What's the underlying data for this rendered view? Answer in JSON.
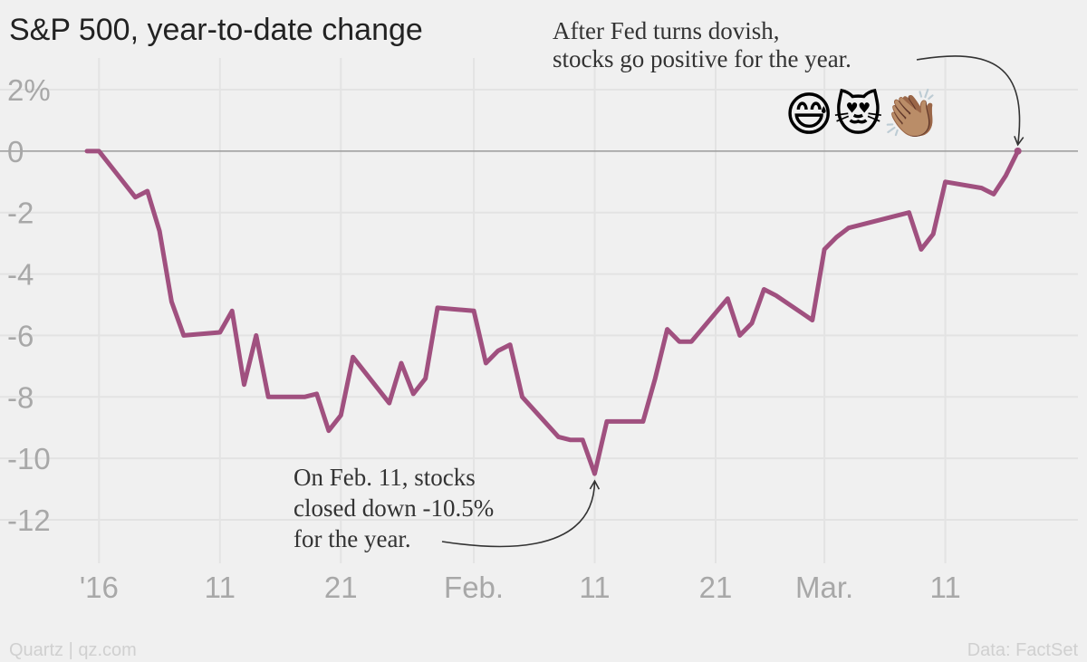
{
  "footer": {
    "source_left": "Quartz | qz.com",
    "source_right": "Data: FactSet"
  },
  "colors": {
    "line": "#a0507f",
    "background": "#f0f0f0",
    "grid": "#e3e3e3",
    "zero_line": "#9a9a9a",
    "tick_text": "#a8a8a8"
  },
  "chart_data": {
    "type": "line",
    "title": "S&P 500, year-to-date change",
    "xlabel": "",
    "ylabel": "",
    "ylim": [
      -13,
      2.5
    ],
    "grid": true,
    "y_ticks": [
      {
        "value": 2,
        "label": "2%"
      },
      {
        "value": 0,
        "label": "0"
      },
      {
        "value": -2,
        "label": "-2"
      },
      {
        "value": -4,
        "label": "-4"
      },
      {
        "value": -6,
        "label": "-6"
      },
      {
        "value": -8,
        "label": "-8"
      },
      {
        "value": -10,
        "label": "-10"
      },
      {
        "value": -12,
        "label": "-12"
      }
    ],
    "x_unit": "day of 2016",
    "xlim": [
      0,
      78
    ],
    "x_ticks": [
      {
        "value": 1,
        "label": "'16"
      },
      {
        "value": 11,
        "label": "11"
      },
      {
        "value": 21,
        "label": "21"
      },
      {
        "value": 32,
        "label": "Feb."
      },
      {
        "value": 42,
        "label": "11"
      },
      {
        "value": 52,
        "label": "21"
      },
      {
        "value": 61,
        "label": "Mar."
      },
      {
        "value": 71,
        "label": "11"
      }
    ],
    "series": [
      {
        "name": "S&P 500 YTD change (%)",
        "x": [
          0,
          1,
          4,
          5,
          6,
          7,
          8,
          11,
          12,
          13,
          14,
          15,
          18,
          19,
          20,
          21,
          22,
          25,
          26,
          27,
          28,
          29,
          32,
          33,
          34,
          35,
          36,
          39,
          40,
          41,
          42,
          43,
          46,
          47,
          48,
          49,
          50,
          53,
          54,
          55,
          56,
          57,
          60,
          61,
          62,
          63,
          67,
          68,
          69,
          70,
          71,
          74,
          75,
          76,
          77
        ],
        "y": [
          0.0,
          0.0,
          -1.5,
          -1.3,
          -2.6,
          -4.9,
          -6.0,
          -5.9,
          -5.2,
          -7.6,
          -6.0,
          -8.0,
          -8.0,
          -7.9,
          -9.1,
          -8.6,
          -6.7,
          -8.2,
          -6.9,
          -7.9,
          -7.4,
          -5.1,
          -5.2,
          -6.9,
          -6.5,
          -6.3,
          -8.0,
          -9.3,
          -9.4,
          -9.4,
          -10.5,
          -8.8,
          -8.8,
          -7.4,
          -5.8,
          -6.2,
          -6.2,
          -4.8,
          -6.0,
          -5.6,
          -4.5,
          -4.7,
          -5.5,
          -3.2,
          -2.8,
          -2.5,
          -2.1,
          -2.0,
          -3.2,
          -2.7,
          -1.0,
          -1.2,
          -1.4,
          -0.8,
          0.0
        ]
      }
    ],
    "annotations": [
      {
        "name": "fed-annotation",
        "lines": [
          "After Fed turns dovish,",
          "stocks go positive for the year."
        ],
        "emojis": "😅😻👏🏽",
        "target": {
          "x": 77,
          "y": 0.0
        }
      },
      {
        "name": "feb11-annotation",
        "lines": [
          "On Feb. 11,  stocks",
          "closed down -10.5%",
          "for the year."
        ],
        "target": {
          "x": 42,
          "y": -10.5
        }
      }
    ]
  }
}
